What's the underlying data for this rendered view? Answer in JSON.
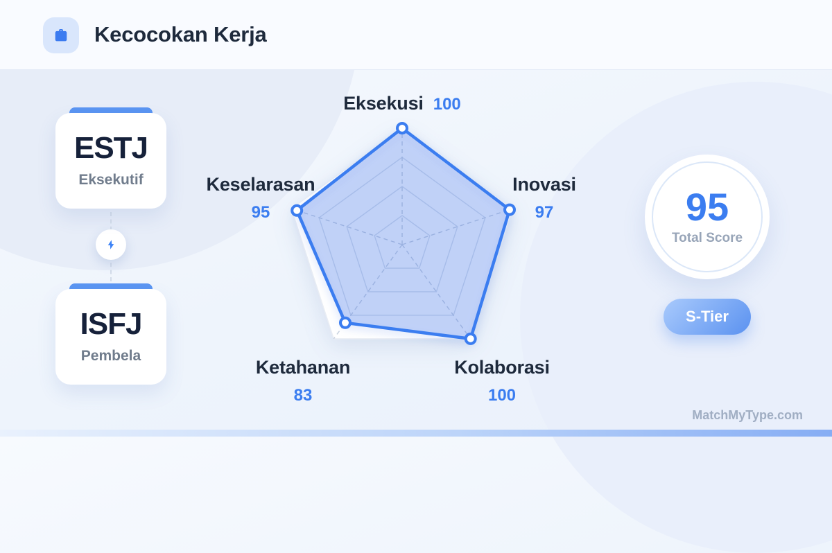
{
  "header": {
    "title": "Kecocokan Kerja",
    "icon": "briefcase-icon"
  },
  "pair": {
    "top": {
      "code": "ESTJ",
      "name": "Eksekutif"
    },
    "connector_icon": "lightning-bolt-icon",
    "bottom": {
      "code": "ISFJ",
      "name": "Pembela"
    }
  },
  "chart_data": {
    "type": "radar",
    "categories": [
      "Eksekusi",
      "Inovasi",
      "Kolaborasi",
      "Ketahanan",
      "Keselarasan"
    ],
    "values": [
      100,
      97,
      100,
      83,
      95
    ],
    "max": 100,
    "rings": [
      25,
      50,
      75,
      100
    ],
    "grid": "pentagon, dashed radial axes",
    "legend": "none",
    "accent": "#3b7df0",
    "fill": "rgba(70,120,235,0.28)"
  },
  "score": {
    "value": "95",
    "label": "Total Score",
    "tier": "S-Tier"
  },
  "watermark": "MatchMyType.com",
  "colors": {
    "accent_blue": "#3b7df0",
    "dark_navy": "#1e2a3c",
    "card_tab_blue": "#5b95f2",
    "muted_gray": "#707c8c",
    "badge_gradient_start": "#a9cafc",
    "badge_gradient_end": "#5b92f0"
  }
}
